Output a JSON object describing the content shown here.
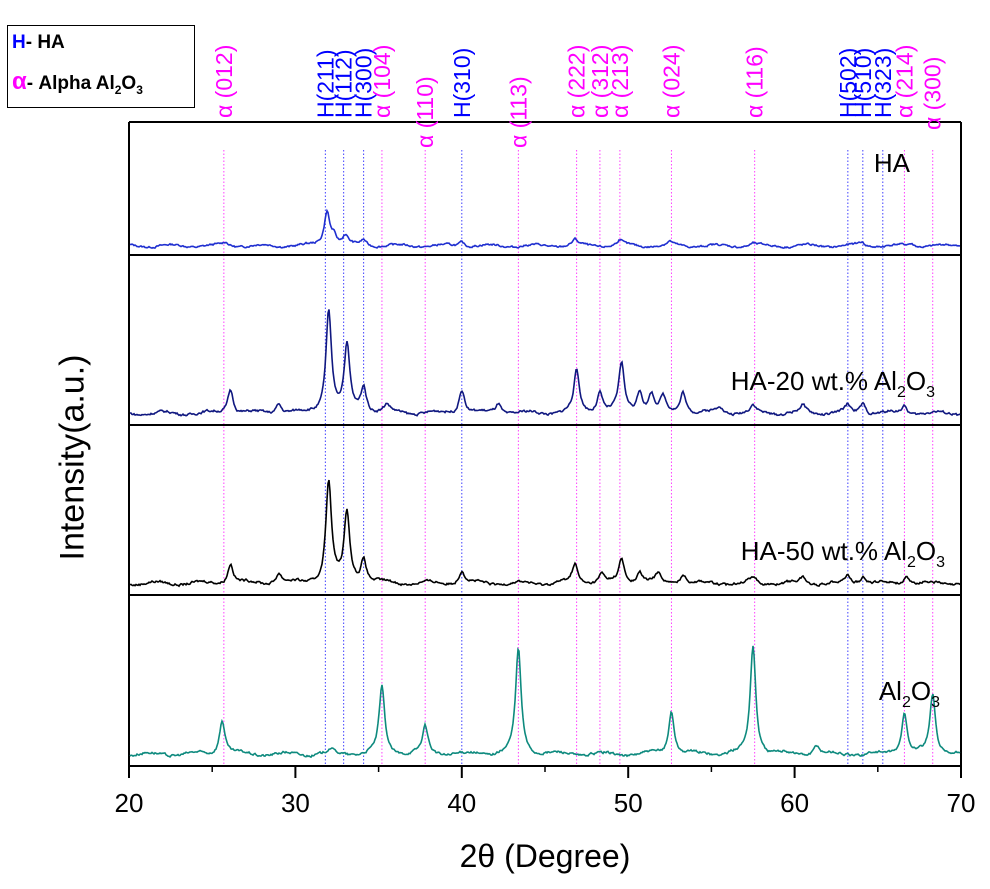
{
  "legend": {
    "h_symbol": "H",
    "h_text": "- HA",
    "alpha_symbol": "α",
    "alpha_text": "- Alpha Al",
    "alpha_sub1": "2",
    "alpha_o": "O",
    "alpha_sub2": "3"
  },
  "colors": {
    "ha_peak_label": "#0000ff",
    "alpha_peak_label": "#ff00ff",
    "ha_pattern": "#1f2fd0",
    "ha20_pattern": "#101880",
    "ha50_pattern": "#000000",
    "al2o3_pattern": "#0e8a7e"
  },
  "chart_data": {
    "type": "line",
    "xlabel": "2θ (Degree)",
    "ylabel": "Intensity(a.u.)",
    "xlim": [
      20,
      70
    ],
    "xticks": [
      "20",
      "30",
      "40",
      "50",
      "60",
      "70"
    ],
    "grid": false,
    "peak_labels": [
      {
        "text": "α (012)",
        "phase": "alpha",
        "x": 25.7
      },
      {
        "text": "H(211)",
        "phase": "H",
        "x": 31.8
      },
      {
        "text": "H(112)",
        "phase": "H",
        "x": 32.9
      },
      {
        "text": "H(300)",
        "phase": "H",
        "x": 34.1
      },
      {
        "text": "α (104)",
        "phase": "alpha",
        "x": 35.2
      },
      {
        "text": "α (110)",
        "phase": "alpha",
        "x": 37.8
      },
      {
        "text": "H(310)",
        "phase": "H",
        "x": 40.0
      },
      {
        "text": "α (113)",
        "phase": "alpha",
        "x": 43.4
      },
      {
        "text": "α (222)",
        "phase": "alpha",
        "x": 46.9
      },
      {
        "text": "α (312)",
        "phase": "alpha",
        "x": 48.3
      },
      {
        "text": "α (213)",
        "phase": "alpha",
        "x": 49.5
      },
      {
        "text": "α (024)",
        "phase": "alpha",
        "x": 52.6
      },
      {
        "text": "α (116)",
        "phase": "alpha",
        "x": 57.6
      },
      {
        "text": "H(502)",
        "phase": "H",
        "x": 63.2
      },
      {
        "text": "H(510)",
        "phase": "H",
        "x": 64.1
      },
      {
        "text": "H(323)",
        "phase": "H",
        "x": 65.3
      },
      {
        "text": "α (214)",
        "phase": "alpha",
        "x": 66.6
      },
      {
        "text": "α (300)",
        "phase": "alpha",
        "x": 68.3
      }
    ],
    "series": [
      {
        "name": "HA",
        "base": 0.08,
        "peaks": [
          [
            25.8,
            0.03
          ],
          [
            31.9,
            0.3
          ],
          [
            32.3,
            0.08
          ],
          [
            33.0,
            0.08
          ],
          [
            34.1,
            0.05
          ],
          [
            40.0,
            0.04
          ],
          [
            46.8,
            0.05
          ],
          [
            49.5,
            0.05
          ],
          [
            52.5,
            0.03
          ],
          [
            57.5,
            0.02
          ],
          [
            64.0,
            0.03
          ],
          [
            67.0,
            0.02
          ]
        ]
      },
      {
        "name": "HA-20 wt.% Al",
        "sub1": "2",
        "o": "O",
        "sub2": "3",
        "base": 0.08,
        "peaks": [
          [
            26.1,
            0.17
          ],
          [
            29.0,
            0.07
          ],
          [
            32.0,
            0.7
          ],
          [
            33.1,
            0.45
          ],
          [
            34.1,
            0.18
          ],
          [
            35.5,
            0.05
          ],
          [
            40.0,
            0.17
          ],
          [
            42.2,
            0.07
          ],
          [
            46.9,
            0.28
          ],
          [
            48.3,
            0.14
          ],
          [
            49.6,
            0.33
          ],
          [
            50.7,
            0.15
          ],
          [
            51.4,
            0.12
          ],
          [
            52.1,
            0.1
          ],
          [
            53.3,
            0.15
          ],
          [
            55.5,
            0.05
          ],
          [
            57.5,
            0.05
          ],
          [
            60.5,
            0.05
          ],
          [
            63.2,
            0.05
          ],
          [
            64.1,
            0.07
          ],
          [
            66.6,
            0.05
          ]
        ]
      },
      {
        "name": "HA-50 wt.% Al",
        "sub1": "2",
        "o": "O",
        "sub2": "3",
        "base": 0.08,
        "peaks": [
          [
            26.1,
            0.14
          ],
          [
            29.0,
            0.07
          ],
          [
            32.0,
            0.7
          ],
          [
            33.1,
            0.48
          ],
          [
            34.1,
            0.16
          ],
          [
            40.0,
            0.09
          ],
          [
            46.8,
            0.13
          ],
          [
            48.4,
            0.06
          ],
          [
            49.6,
            0.16
          ],
          [
            50.7,
            0.08
          ],
          [
            51.8,
            0.06
          ],
          [
            53.3,
            0.07
          ],
          [
            57.5,
            0.04
          ],
          [
            60.5,
            0.04
          ],
          [
            63.2,
            0.05
          ],
          [
            64.1,
            0.05
          ],
          [
            66.7,
            0.05
          ]
        ]
      },
      {
        "name": "Al",
        "sub1": "2",
        "o": "O",
        "sub2": "3",
        "base": 0.08,
        "peaks": [
          [
            25.6,
            0.24
          ],
          [
            32.1,
            0.03
          ],
          [
            35.2,
            0.45
          ],
          [
            37.8,
            0.18
          ],
          [
            43.4,
            0.71
          ],
          [
            52.6,
            0.3
          ],
          [
            57.5,
            0.74
          ],
          [
            61.3,
            0.06
          ],
          [
            66.6,
            0.28
          ],
          [
            68.3,
            0.4
          ]
        ]
      }
    ]
  }
}
